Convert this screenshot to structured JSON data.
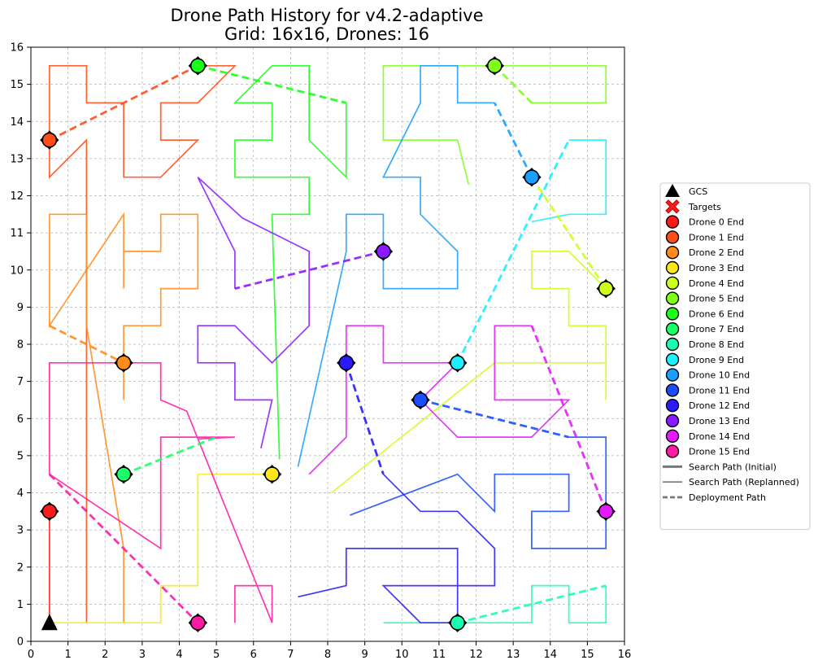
{
  "chart_data": {
    "type": "line",
    "title_line1": "Drone Path History for v4.2-adaptive",
    "title_line2": "Grid: 16x16, Drones: 16",
    "xlim": [
      0,
      16
    ],
    "ylim": [
      0,
      16
    ],
    "xticks": [
      "0",
      "1",
      "2",
      "3",
      "4",
      "5",
      "6",
      "7",
      "8",
      "9",
      "10",
      "11",
      "12",
      "13",
      "14",
      "15",
      "16"
    ],
    "yticks": [
      "0",
      "1",
      "2",
      "3",
      "4",
      "5",
      "6",
      "7",
      "8",
      "9",
      "10",
      "11",
      "12",
      "13",
      "14",
      "15",
      "16"
    ],
    "grid": true,
    "gcs": {
      "label": "GCS",
      "x": 0.5,
      "y": 0.5
    },
    "legend": {
      "placement": "outside-right",
      "gcs_label": "GCS",
      "targets_label": "Targets",
      "search_initial_label": "Search Path (Initial)",
      "search_replanned_label": "Search Path (Replanned)",
      "deployment_label": "Deployment Path"
    },
    "drones": [
      {
        "name": "Drone 0 End",
        "color": "#ff1a1a",
        "end": [
          0.5,
          3.5
        ],
        "search": [
          [
            0.5,
            0.5
          ],
          [
            0.5,
            3.5
          ]
        ],
        "deploy": []
      },
      {
        "name": "Drone 1 End",
        "color": "#ff4d1a",
        "end": [
          0.5,
          13.5
        ],
        "search": [
          [
            1.5,
            0.5
          ],
          [
            1.5,
            3.5
          ],
          [
            1.5,
            13.5
          ],
          [
            0.5,
            12.5
          ],
          [
            0.5,
            15.5
          ],
          [
            1.5,
            15.5
          ],
          [
            1.5,
            14.5
          ],
          [
            2.5,
            14.5
          ],
          [
            2.5,
            12.5
          ],
          [
            3.5,
            12.5
          ],
          [
            4.5,
            13.5
          ],
          [
            3.5,
            13.5
          ],
          [
            3.5,
            14.5
          ],
          [
            4.5,
            14.5
          ],
          [
            5.5,
            15.5
          ],
          [
            4.5,
            15.5
          ]
        ],
        "deploy": [
          [
            0.5,
            13.5
          ],
          [
            4.5,
            15.5
          ]
        ]
      },
      {
        "name": "Drone 2 End",
        "color": "#ff8c1a",
        "end": [
          2.5,
          7.5
        ],
        "search": [
          [
            2.5,
            0.5
          ],
          [
            2.5,
            2.5
          ],
          [
            1.5,
            8.5
          ],
          [
            1.5,
            11.5
          ],
          [
            0.5,
            11.5
          ],
          [
            0.5,
            8.5
          ],
          [
            2.5,
            11.5
          ],
          [
            2.5,
            9.5
          ],
          [
            2.5,
            10.5
          ],
          [
            3.5,
            10.5
          ],
          [
            3.5,
            11.5
          ],
          [
            4.5,
            11.5
          ],
          [
            4.5,
            9.5
          ],
          [
            3.5,
            9.5
          ],
          [
            3.5,
            8.5
          ],
          [
            2.5,
            8.5
          ],
          [
            2.5,
            6.5
          ]
        ],
        "deploy": [
          [
            0.5,
            8.5
          ],
          [
            2.5,
            7.5
          ]
        ]
      },
      {
        "name": "Drone 3 End",
        "color": "#ffe61a",
        "end": [
          6.5,
          4.5
        ],
        "search": [
          [
            0.5,
            0.5
          ],
          [
            3.5,
            0.5
          ],
          [
            3.5,
            1.5
          ],
          [
            4.5,
            1.5
          ],
          [
            4.5,
            4.5
          ],
          [
            6.5,
            4.5
          ]
        ],
        "deploy": []
      },
      {
        "name": "Drone 4 End",
        "color": "#ccff1a",
        "end": [
          15.5,
          9.5
        ],
        "search": [
          [
            8.1,
            4.0
          ],
          [
            12.5,
            7.5
          ],
          [
            15.5,
            7.5
          ],
          [
            15.5,
            6.5
          ],
          [
            15.5,
            8.5
          ],
          [
            14.5,
            8.5
          ],
          [
            14.5,
            9.5
          ],
          [
            13.5,
            9.5
          ],
          [
            13.5,
            10.5
          ],
          [
            14.5,
            10.5
          ],
          [
            15.5,
            9.5
          ]
        ],
        "deploy": [
          [
            13.5,
            12.5
          ],
          [
            15.5,
            9.5
          ]
        ]
      },
      {
        "name": "Drone 5 End",
        "color": "#80ff1a",
        "end": [
          12.5,
          15.5
        ],
        "search": [
          [
            11.8,
            12.3
          ],
          [
            11.5,
            13.5
          ],
          [
            9.5,
            13.5
          ],
          [
            9.5,
            15.5
          ],
          [
            15.5,
            15.5
          ],
          [
            15.5,
            14.5
          ],
          [
            13.5,
            14.5
          ]
        ],
        "deploy": [
          [
            12.5,
            15.5
          ],
          [
            13.5,
            14.5
          ]
        ]
      },
      {
        "name": "Drone 6 End",
        "color": "#1aff1a",
        "end": [
          4.5,
          15.5
        ],
        "search": [
          [
            6.7,
            4.9
          ],
          [
            6.5,
            11.5
          ],
          [
            7.5,
            11.5
          ],
          [
            7.5,
            12.5
          ],
          [
            5.5,
            12.5
          ],
          [
            5.5,
            13.5
          ],
          [
            6.5,
            13.5
          ],
          [
            6.5,
            14.5
          ],
          [
            5.5,
            14.5
          ],
          [
            6.5,
            15.5
          ],
          [
            7.5,
            15.5
          ],
          [
            7.5,
            13.5
          ],
          [
            8.5,
            12.5
          ],
          [
            8.5,
            14.5
          ]
        ],
        "deploy": [
          [
            4.5,
            15.5
          ],
          [
            8.5,
            14.5
          ]
        ]
      },
      {
        "name": "Drone 7 End",
        "color": "#1aff66",
        "end": [
          2.5,
          4.5
        ],
        "search": [],
        "deploy": [
          [
            2.5,
            4.5
          ],
          [
            5.0,
            5.5
          ]
        ]
      },
      {
        "name": "Drone 8 End",
        "color": "#1affb3",
        "end": [
          11.5,
          0.5
        ],
        "search": [
          [
            9.5,
            0.5
          ],
          [
            13.5,
            0.5
          ],
          [
            13.5,
            1.5
          ],
          [
            14.5,
            1.5
          ],
          [
            14.5,
            0.5
          ],
          [
            15.5,
            0.5
          ],
          [
            15.5,
            1.5
          ]
        ],
        "deploy": [
          [
            11.5,
            0.5
          ],
          [
            15.5,
            1.5
          ]
        ]
      },
      {
        "name": "Drone 9 End",
        "color": "#1af0ff",
        "end": [
          11.5,
          7.5
        ],
        "search": [
          [
            13.5,
            11.3
          ],
          [
            14.5,
            11.5
          ],
          [
            15.5,
            11.5
          ],
          [
            15.5,
            13.5
          ],
          [
            14.5,
            13.5
          ]
        ],
        "deploy": [
          [
            11.5,
            7.5
          ],
          [
            14.5,
            13.5
          ]
        ]
      },
      {
        "name": "Drone 10 End",
        "color": "#1a9fff",
        "end": [
          13.5,
          12.5
        ],
        "search": [
          [
            7.2,
            4.7
          ],
          [
            8.5,
            10.5
          ],
          [
            8.5,
            11.5
          ],
          [
            9.5,
            11.5
          ],
          [
            9.5,
            9.5
          ],
          [
            11.5,
            9.5
          ],
          [
            11.5,
            10.5
          ],
          [
            10.5,
            11.5
          ],
          [
            10.5,
            12.5
          ],
          [
            9.5,
            12.5
          ],
          [
            10.5,
            14.5
          ],
          [
            10.5,
            15.5
          ],
          [
            11.5,
            15.5
          ],
          [
            11.5,
            14.5
          ],
          [
            12.5,
            14.5
          ]
        ],
        "deploy": [
          [
            13.5,
            12.5
          ],
          [
            12.5,
            14.5
          ]
        ]
      },
      {
        "name": "Drone 11 End",
        "color": "#1a4dff",
        "end": [
          10.5,
          6.5
        ],
        "search": [
          [
            8.6,
            3.4
          ],
          [
            11.5,
            4.5
          ],
          [
            12.5,
            3.5
          ],
          [
            12.5,
            4.5
          ],
          [
            14.5,
            4.5
          ],
          [
            14.5,
            3.5
          ],
          [
            13.5,
            3.5
          ],
          [
            13.5,
            2.5
          ],
          [
            15.5,
            2.5
          ],
          [
            15.5,
            5.5
          ],
          [
            14.5,
            5.5
          ]
        ],
        "deploy": [
          [
            10.5,
            6.5
          ],
          [
            14.5,
            5.5
          ]
        ]
      },
      {
        "name": "Drone 12 End",
        "color": "#2a1aff",
        "end": [
          8.5,
          7.5
        ],
        "search": [
          [
            7.2,
            1.2
          ],
          [
            8.5,
            1.5
          ],
          [
            8.5,
            2.5
          ],
          [
            11.5,
            2.5
          ],
          [
            11.5,
            0.5
          ],
          [
            10.5,
            0.5
          ],
          [
            9.5,
            1.5
          ],
          [
            12.5,
            1.5
          ],
          [
            12.5,
            2.5
          ],
          [
            11.5,
            3.5
          ],
          [
            10.5,
            3.5
          ],
          [
            9.5,
            4.5
          ]
        ],
        "deploy": [
          [
            8.5,
            7.5
          ],
          [
            9.5,
            4.5
          ]
        ]
      },
      {
        "name": "Drone 13 End",
        "color": "#8c1aff",
        "end": [
          9.5,
          10.5
        ],
        "search": [
          [
            6.2,
            5.2
          ],
          [
            6.5,
            6.5
          ],
          [
            5.5,
            6.5
          ],
          [
            5.5,
            7.5
          ],
          [
            4.5,
            7.5
          ],
          [
            4.5,
            8.5
          ],
          [
            5.5,
            8.5
          ],
          [
            6.5,
            7.5
          ],
          [
            7.5,
            8.5
          ],
          [
            7.5,
            10.5
          ],
          [
            5.7,
            11.4
          ],
          [
            4.5,
            12.5
          ],
          [
            5.5,
            10.5
          ],
          [
            5.5,
            9.5
          ]
        ],
        "deploy": [
          [
            9.5,
            10.5
          ],
          [
            5.5,
            9.5
          ]
        ]
      },
      {
        "name": "Drone 14 End",
        "color": "#e61aff",
        "end": [
          15.5,
          3.5
        ],
        "search": [
          [
            7.5,
            4.5
          ],
          [
            8.5,
            5.5
          ],
          [
            8.5,
            8.5
          ],
          [
            9.5,
            8.5
          ],
          [
            9.5,
            7.5
          ],
          [
            11.5,
            7.5
          ],
          [
            10.5,
            6.5
          ],
          [
            11.5,
            5.5
          ],
          [
            13.5,
            5.5
          ],
          [
            14.5,
            6.5
          ],
          [
            12.5,
            6.5
          ],
          [
            12.5,
            8.5
          ],
          [
            13.5,
            8.5
          ]
        ],
        "deploy": [
          [
            15.5,
            3.5
          ],
          [
            13.5,
            8.5
          ]
        ]
      },
      {
        "name": "Drone 15 End",
        "color": "#ff1aa6",
        "end": [
          4.5,
          0.5
        ],
        "search": [
          [
            5.5,
            0.5
          ],
          [
            5.5,
            1.5
          ],
          [
            6.5,
            1.5
          ],
          [
            6.5,
            0.5
          ],
          [
            4.2,
            6.2
          ],
          [
            3.5,
            6.5
          ],
          [
            3.5,
            7.5
          ],
          [
            0.5,
            7.5
          ],
          [
            0.5,
            4.5
          ],
          [
            3.5,
            2.5
          ],
          [
            3.5,
            5.5
          ],
          [
            5.5,
            5.5
          ],
          [
            4.5,
            5.45
          ]
        ],
        "deploy": [
          [
            0.5,
            4.5
          ],
          [
            4.5,
            0.5
          ]
        ]
      }
    ]
  }
}
